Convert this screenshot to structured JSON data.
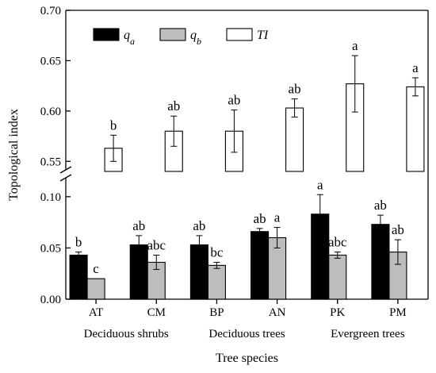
{
  "chart_data": {
    "type": "bar",
    "xlabel": "Tree species",
    "ylabel": "Topological index",
    "y_axis_break": true,
    "y_segments": [
      {
        "range": [
          0.0,
          0.12
        ],
        "ticks": [
          "0.00",
          "0.05",
          "0.10"
        ]
      },
      {
        "range": [
          0.54,
          0.7
        ],
        "ticks": [
          "0.55",
          "0.60",
          "0.65",
          "0.70"
        ]
      }
    ],
    "categories": [
      "AT",
      "CM",
      "BP",
      "AN",
      "PK",
      "PM"
    ],
    "groups": [
      {
        "label": "Deciduous shrubs",
        "categories": [
          "AT",
          "CM"
        ]
      },
      {
        "label": "Deciduous trees",
        "categories": [
          "BP",
          "AN"
        ]
      },
      {
        "label": "Evergreen trees",
        "categories": [
          "PK",
          "PM"
        ]
      }
    ],
    "series": [
      {
        "name": "q",
        "subscript": "a",
        "color": "#000000",
        "values": [
          0.043,
          0.053,
          0.053,
          0.066,
          0.083,
          0.073
        ],
        "errors": [
          0.003,
          0.009,
          0.009,
          0.003,
          0.019,
          0.009
        ],
        "letters": [
          "b",
          "ab",
          "ab",
          "ab",
          "a",
          "ab"
        ]
      },
      {
        "name": "q",
        "subscript": "b",
        "color": "#bdbdbd",
        "values": [
          0.02,
          0.036,
          0.033,
          0.06,
          0.043,
          0.046
        ],
        "errors": [
          0.0,
          0.007,
          0.003,
          0.01,
          0.003,
          0.012
        ],
        "letters": [
          "c",
          "abc",
          "bc",
          "a",
          "abc",
          "ab"
        ]
      },
      {
        "name": "TI",
        "subscript": "",
        "color": "#ffffff",
        "values": [
          0.563,
          0.58,
          0.58,
          0.603,
          0.627,
          0.624
        ],
        "errors": [
          0.013,
          0.015,
          0.021,
          0.009,
          0.028,
          0.009
        ],
        "letters": [
          "b",
          "ab",
          "ab",
          "ab",
          "a",
          "a"
        ]
      }
    ],
    "legend_position": "top-left",
    "grid": false
  }
}
